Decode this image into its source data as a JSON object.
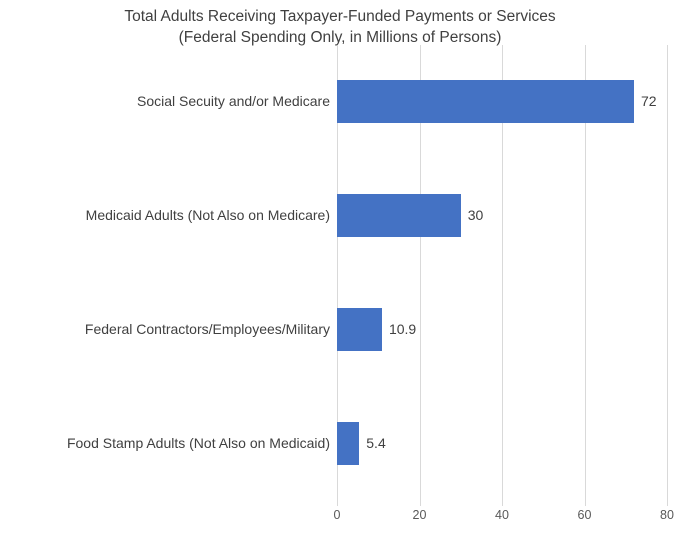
{
  "chart_data": {
    "type": "bar",
    "orientation": "horizontal",
    "title": "Total Adults Receiving Taxpayer-Funded Payments or Services (Federal Spending Only, in Millions of Persons)",
    "title_line1": "Total Adults Receiving Taxpayer-Funded Payments or Services",
    "title_line2": "(Federal Spending Only, in Millions of Persons)",
    "categories": [
      "Social Secuity and/or Medicare",
      "Medicaid Adults (Not Also on Medicare)",
      "Federal Contractors/Employees/Military",
      "Food Stamp Adults (Not Also on Medicaid)"
    ],
    "values": [
      72,
      30,
      10.9,
      5.4
    ],
    "data_labels": [
      "72",
      "30",
      "10.9",
      "5.4"
    ],
    "xlabel": "",
    "ylabel": "",
    "xlim": [
      0,
      80
    ],
    "xticks": [
      0,
      20,
      40,
      60,
      80
    ],
    "grid": true,
    "legend": "none",
    "colors": {
      "bar": "#4472C4",
      "gridline": "#D9D9D9",
      "title_text": "#404040",
      "category_text": "#404040",
      "data_label_text": "#404040",
      "axis_tick_text": "#595959",
      "background": "#FFFFFF"
    }
  }
}
